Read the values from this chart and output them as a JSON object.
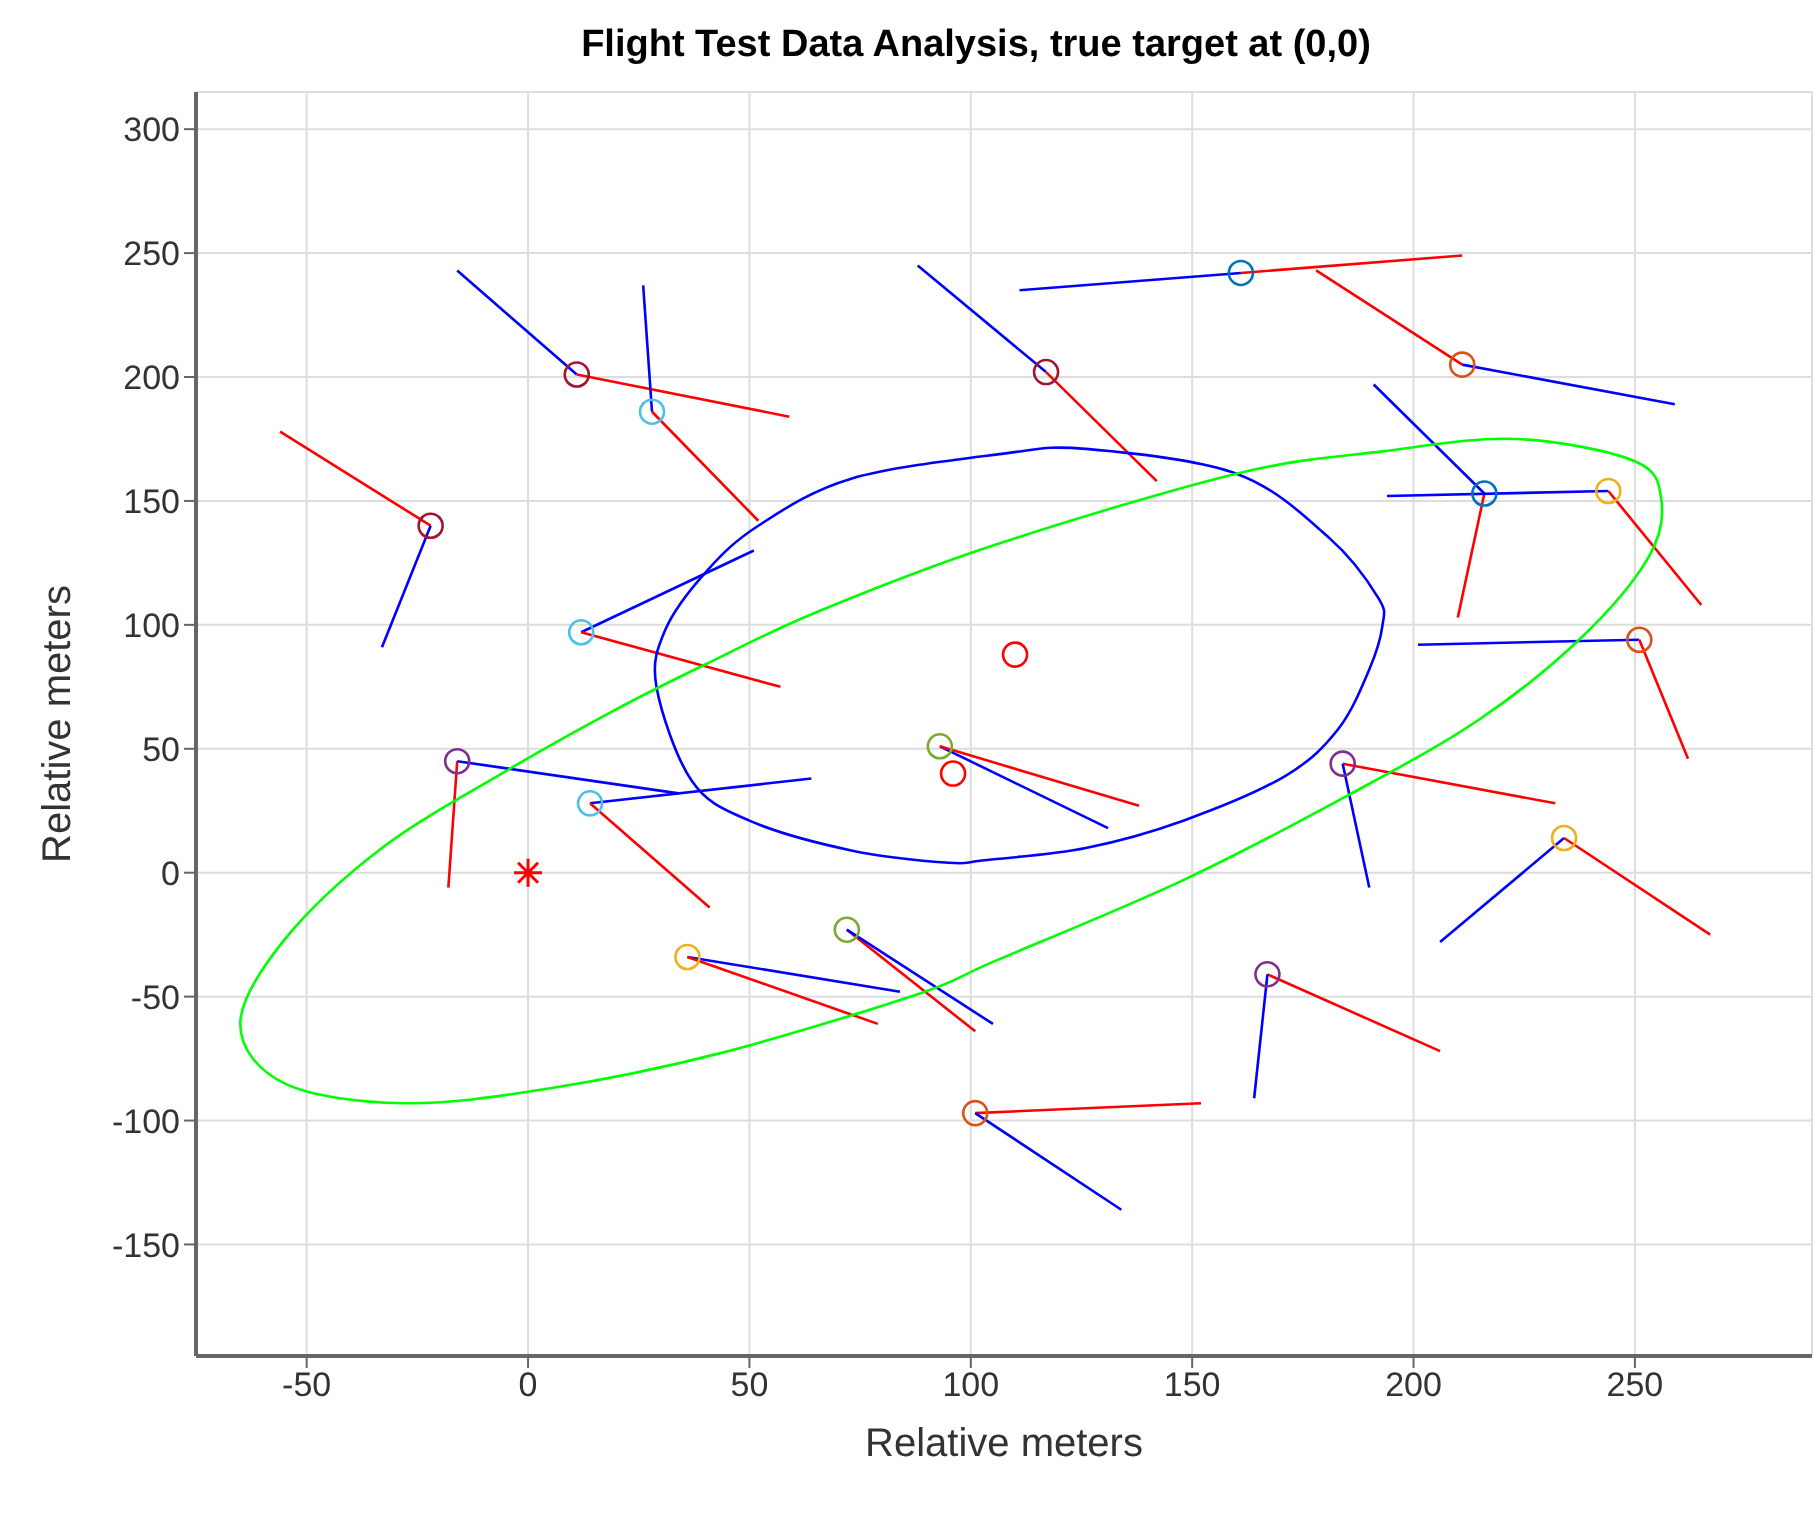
{
  "chart_data": {
    "type": "line",
    "title": "Flight Test Data Analysis, true target at (0,0)",
    "xlabel": "Relative meters",
    "ylabel": "Relative meters",
    "xlim": [
      -75,
      290
    ],
    "ylim": [
      -195,
      315
    ],
    "xticks": [
      -50,
      0,
      50,
      100,
      150,
      200,
      250
    ],
    "yticks": [
      -150,
      -100,
      -50,
      0,
      50,
      100,
      150,
      200,
      250,
      300
    ],
    "grid": true,
    "line_style": "solid",
    "series": [
      {
        "color": "#ff0000",
        "marker": "none",
        "x": [
          -56,
          -22
        ],
        "values": [
          178,
          140
        ]
      },
      {
        "color": "#0000ff",
        "marker": "none",
        "x": [
          -33,
          -22
        ],
        "values": [
          91,
          140
        ]
      },
      {
        "color": "#0000ff",
        "marker": "none",
        "x": [
          -16,
          11
        ],
        "values": [
          243,
          201
        ]
      },
      {
        "color": "#ff0000",
        "marker": "none",
        "x": [
          11,
          59
        ],
        "values": [
          201,
          184
        ]
      },
      {
        "color": "#0000ff",
        "marker": "none",
        "x": [
          26,
          28
        ],
        "values": [
          237,
          186
        ]
      },
      {
        "color": "#ff0000",
        "marker": "none",
        "x": [
          28,
          52
        ],
        "values": [
          186,
          142
        ]
      },
      {
        "color": "#0000ff",
        "marker": "none",
        "x": [
          12,
          51
        ],
        "values": [
          97,
          130
        ]
      },
      {
        "color": "#ff0000",
        "marker": "none",
        "x": [
          12,
          57
        ],
        "values": [
          97,
          75
        ]
      },
      {
        "color": "#0000ff",
        "marker": "none",
        "x": [
          111,
          161
        ],
        "values": [
          235,
          242
        ]
      },
      {
        "color": "#ff0000",
        "marker": "none",
        "x": [
          161,
          211
        ],
        "values": [
          242,
          249
        ]
      },
      {
        "color": "#0000ff",
        "marker": "none",
        "x": [
          88,
          117
        ],
        "values": [
          245,
          202
        ]
      },
      {
        "color": "#ff0000",
        "marker": "none",
        "x": [
          117,
          142
        ],
        "values": [
          202,
          158
        ]
      },
      {
        "color": "#ff0000",
        "marker": "none",
        "x": [
          178,
          211
        ],
        "values": [
          243,
          205
        ]
      },
      {
        "color": "#0000ff",
        "marker": "none",
        "x": [
          211,
          259
        ],
        "values": [
          205,
          189
        ]
      },
      {
        "color": "#0000ff",
        "marker": "none",
        "x": [
          191,
          216
        ],
        "values": [
          197,
          153
        ]
      },
      {
        "color": "#ff0000",
        "marker": "none",
        "x": [
          210,
          216
        ],
        "values": [
          103,
          153
        ]
      },
      {
        "color": "#0000ff",
        "marker": "none",
        "x": [
          194,
          244
        ],
        "values": [
          152,
          154
        ]
      },
      {
        "color": "#ff0000",
        "marker": "none",
        "x": [
          244,
          265
        ],
        "values": [
          154,
          108
        ]
      },
      {
        "color": "#0000ff",
        "marker": "none",
        "x": [
          201,
          251
        ],
        "values": [
          92,
          94
        ]
      },
      {
        "color": "#ff0000",
        "marker": "none",
        "x": [
          251,
          262
        ],
        "values": [
          94,
          46
        ]
      },
      {
        "color": "#0000ff",
        "marker": "none",
        "x": [
          -16,
          34
        ],
        "values": [
          45,
          32
        ]
      },
      {
        "color": "#ff0000",
        "marker": "none",
        "x": [
          -18,
          -16
        ],
        "values": [
          -6,
          45
        ]
      },
      {
        "color": "#0000ff",
        "marker": "none",
        "x": [
          14,
          64
        ],
        "values": [
          28,
          38
        ]
      },
      {
        "color": "#ff0000",
        "marker": "none",
        "x": [
          14,
          41
        ],
        "values": [
          28,
          -14
        ]
      },
      {
        "color": "#0000ff",
        "marker": "none",
        "x": [
          36,
          84
        ],
        "values": [
          -34,
          -48
        ]
      },
      {
        "color": "#ff0000",
        "marker": "none",
        "x": [
          36,
          79
        ],
        "values": [
          -34,
          -61
        ]
      },
      {
        "color": "#ff0000",
        "marker": "none",
        "x": [
          72,
          101
        ],
        "values": [
          -23,
          -64
        ]
      },
      {
        "color": "#0000ff",
        "marker": "none",
        "x": [
          72,
          105
        ],
        "values": [
          -23,
          -61
        ]
      },
      {
        "color": "#0000ff",
        "marker": "none",
        "x": [
          93,
          131
        ],
        "values": [
          51,
          18
        ]
      },
      {
        "color": "#ff0000",
        "marker": "none",
        "x": [
          93,
          138
        ],
        "values": [
          51,
          27
        ]
      },
      {
        "color": "#ff0000",
        "marker": "none",
        "x": [
          101,
          152
        ],
        "values": [
          -97,
          -93
        ]
      },
      {
        "color": "#0000ff",
        "marker": "none",
        "x": [
          101,
          134
        ],
        "values": [
          -97,
          -136
        ]
      },
      {
        "color": "#ff0000",
        "marker": "none",
        "x": [
          184,
          232
        ],
        "values": [
          44,
          28
        ]
      },
      {
        "color": "#0000ff",
        "marker": "none",
        "x": [
          184,
          190
        ],
        "values": [
          44,
          -6
        ]
      },
      {
        "color": "#0000ff",
        "marker": "none",
        "x": [
          206,
          234
        ],
        "values": [
          -28,
          14
        ]
      },
      {
        "color": "#ff0000",
        "marker": "none",
        "x": [
          234,
          267
        ],
        "values": [
          14,
          -25
        ]
      },
      {
        "color": "#ff0000",
        "marker": "none",
        "x": [
          167,
          206
        ],
        "values": [
          -41,
          -72
        ]
      },
      {
        "color": "#0000ff",
        "marker": "none",
        "x": [
          164,
          167
        ],
        "values": [
          -91,
          -41
        ]
      },
      {
        "type": "scatter",
        "marker": "circle",
        "x": [
          -22,
          11,
          28,
          12,
          161,
          117,
          211,
          216,
          244,
          251,
          -16,
          14,
          36,
          72,
          93,
          101,
          184,
          234,
          167
        ],
        "values": [
          140,
          201,
          186,
          97,
          242,
          202,
          205,
          153,
          154,
          94,
          45,
          28,
          -34,
          -23,
          51,
          -97,
          44,
          14,
          -41
        ],
        "colors": [
          "#a2142f",
          "#a2142f",
          "#4dbeee",
          "#4dbeee",
          "#0072bd",
          "#a2142f",
          "#d95319",
          "#0072bd",
          "#edb120",
          "#d95319",
          "#7e2f8e",
          "#4dbeee",
          "#edb120",
          "#77ac30",
          "#77ac30",
          "#d95319",
          "#7e2f8e",
          "#edb120",
          "#7e2f8e"
        ]
      },
      {
        "type": "scatter",
        "marker": "circle",
        "color": "#ff0000",
        "x": [
          96,
          110
        ],
        "values": [
          40,
          88
        ]
      },
      {
        "type": "scatter",
        "marker": "cross",
        "color": "#ff0000",
        "x": [
          0
        ],
        "values": [
          0
        ]
      }
    ]
  }
}
